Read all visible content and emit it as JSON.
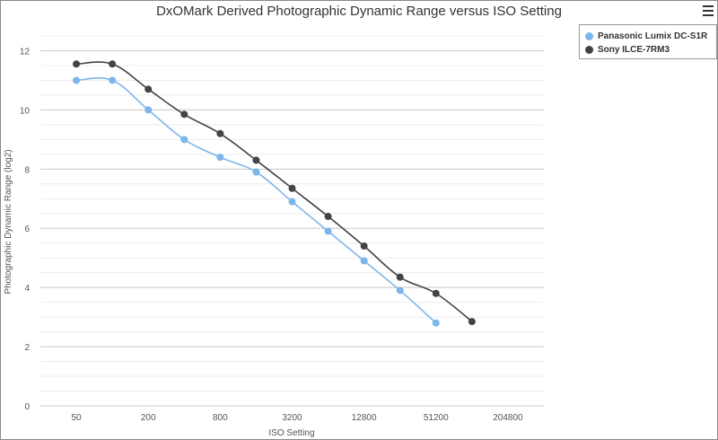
{
  "chart_data": {
    "type": "line",
    "title": "DxOMark Derived Photographic Dynamic Range versus ISO Setting",
    "xlabel": "ISO Setting",
    "ylabel": "Photographic Dynamic Range (log2)",
    "x_ticks": [
      "50",
      "200",
      "800",
      "3200",
      "12800",
      "51200",
      "204800"
    ],
    "x_tick_iso": [
      50,
      200,
      800,
      3200,
      12800,
      51200,
      204800
    ],
    "x_scale": "log2",
    "y_ticks": [
      0,
      2,
      4,
      6,
      8,
      10,
      12
    ],
    "ylim": [
      0,
      12.5
    ],
    "grid": true,
    "legend_placement": "top-right",
    "series": [
      {
        "name": "Panasonic Lumix DC-S1R",
        "color": "#7cb5ec",
        "points": [
          {
            "iso": 50,
            "dr": 11.0
          },
          {
            "iso": 100,
            "dr": 11.0
          },
          {
            "iso": 200,
            "dr": 10.0
          },
          {
            "iso": 400,
            "dr": 9.0
          },
          {
            "iso": 800,
            "dr": 8.4
          },
          {
            "iso": 1600,
            "dr": 7.9
          },
          {
            "iso": 3200,
            "dr": 6.9
          },
          {
            "iso": 6400,
            "dr": 5.9
          },
          {
            "iso": 12800,
            "dr": 4.9
          },
          {
            "iso": 25600,
            "dr": 3.9
          },
          {
            "iso": 51200,
            "dr": 2.8
          }
        ]
      },
      {
        "name": "Sony ILCE-7RM3",
        "color": "#434348",
        "points": [
          {
            "iso": 50,
            "dr": 11.55
          },
          {
            "iso": 100,
            "dr": 11.55
          },
          {
            "iso": 200,
            "dr": 10.7
          },
          {
            "iso": 400,
            "dr": 9.85
          },
          {
            "iso": 800,
            "dr": 9.2
          },
          {
            "iso": 1600,
            "dr": 8.3
          },
          {
            "iso": 3200,
            "dr": 7.35
          },
          {
            "iso": 6400,
            "dr": 6.4
          },
          {
            "iso": 12800,
            "dr": 5.4
          },
          {
            "iso": 25600,
            "dr": 4.35
          },
          {
            "iso": 51200,
            "dr": 3.8
          },
          {
            "iso": 102400,
            "dr": 2.85
          }
        ]
      }
    ]
  }
}
